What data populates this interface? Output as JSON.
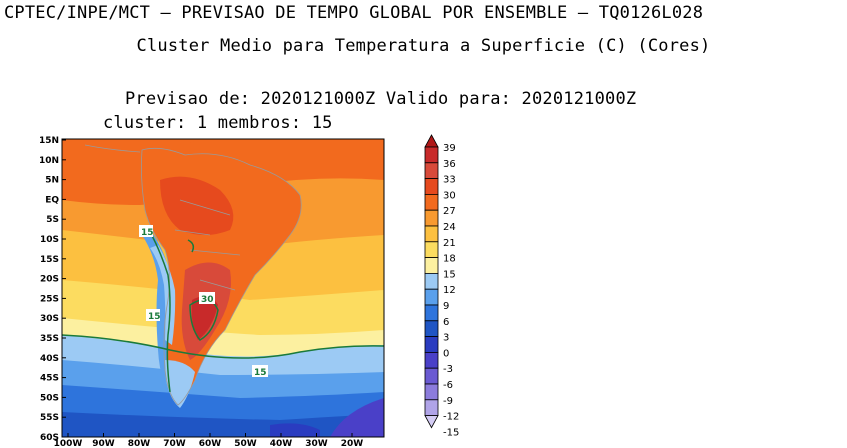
{
  "header": {
    "line1": "CPTEC/INPE/MCT – PREVISAO DE TEMPO GLOBAL POR ENSEMBLE – TQ0126L028",
    "line2": "Cluster Medio para Temperatura a Superficie (C) (Cores)",
    "line3": "Previsao de: 2020121000Z    Valido para: 2020121000Z",
    "line4": "cluster: 1  membros: 15"
  },
  "map": {
    "lat_labels": [
      "15N",
      "10N",
      "5N",
      "EQ",
      "5S",
      "10S",
      "15S",
      "20S",
      "25S",
      "30S",
      "35S",
      "40S",
      "45S",
      "50S",
      "55S",
      "60S"
    ],
    "lon_labels": [
      "100W",
      "90W",
      "80W",
      "70W",
      "60W",
      "50W",
      "40W",
      "30W",
      "20W"
    ],
    "contour_labels": [
      "15",
      "15",
      "30",
      "15"
    ]
  },
  "colorbar": {
    "labels": [
      "39",
      "36",
      "33",
      "30",
      "27",
      "24",
      "21",
      "18",
      "15",
      "12",
      "9",
      "6",
      "3",
      "0",
      "-3",
      "-6",
      "-9",
      "-12",
      "-15"
    ],
    "colors": [
      "#b01818",
      "#c82a2a",
      "#d84a3a",
      "#e64a1e",
      "#f26a1e",
      "#f89a30",
      "#fcc040",
      "#fcdc60",
      "#fcf0a0",
      "#9ccaf4",
      "#5aa0ec",
      "#2e74dc",
      "#1f55c4",
      "#2a3cc0",
      "#4a40c8",
      "#6a5ad2",
      "#8c7cdc",
      "#b0a4e8",
      "#d4ccf4"
    ]
  }
}
